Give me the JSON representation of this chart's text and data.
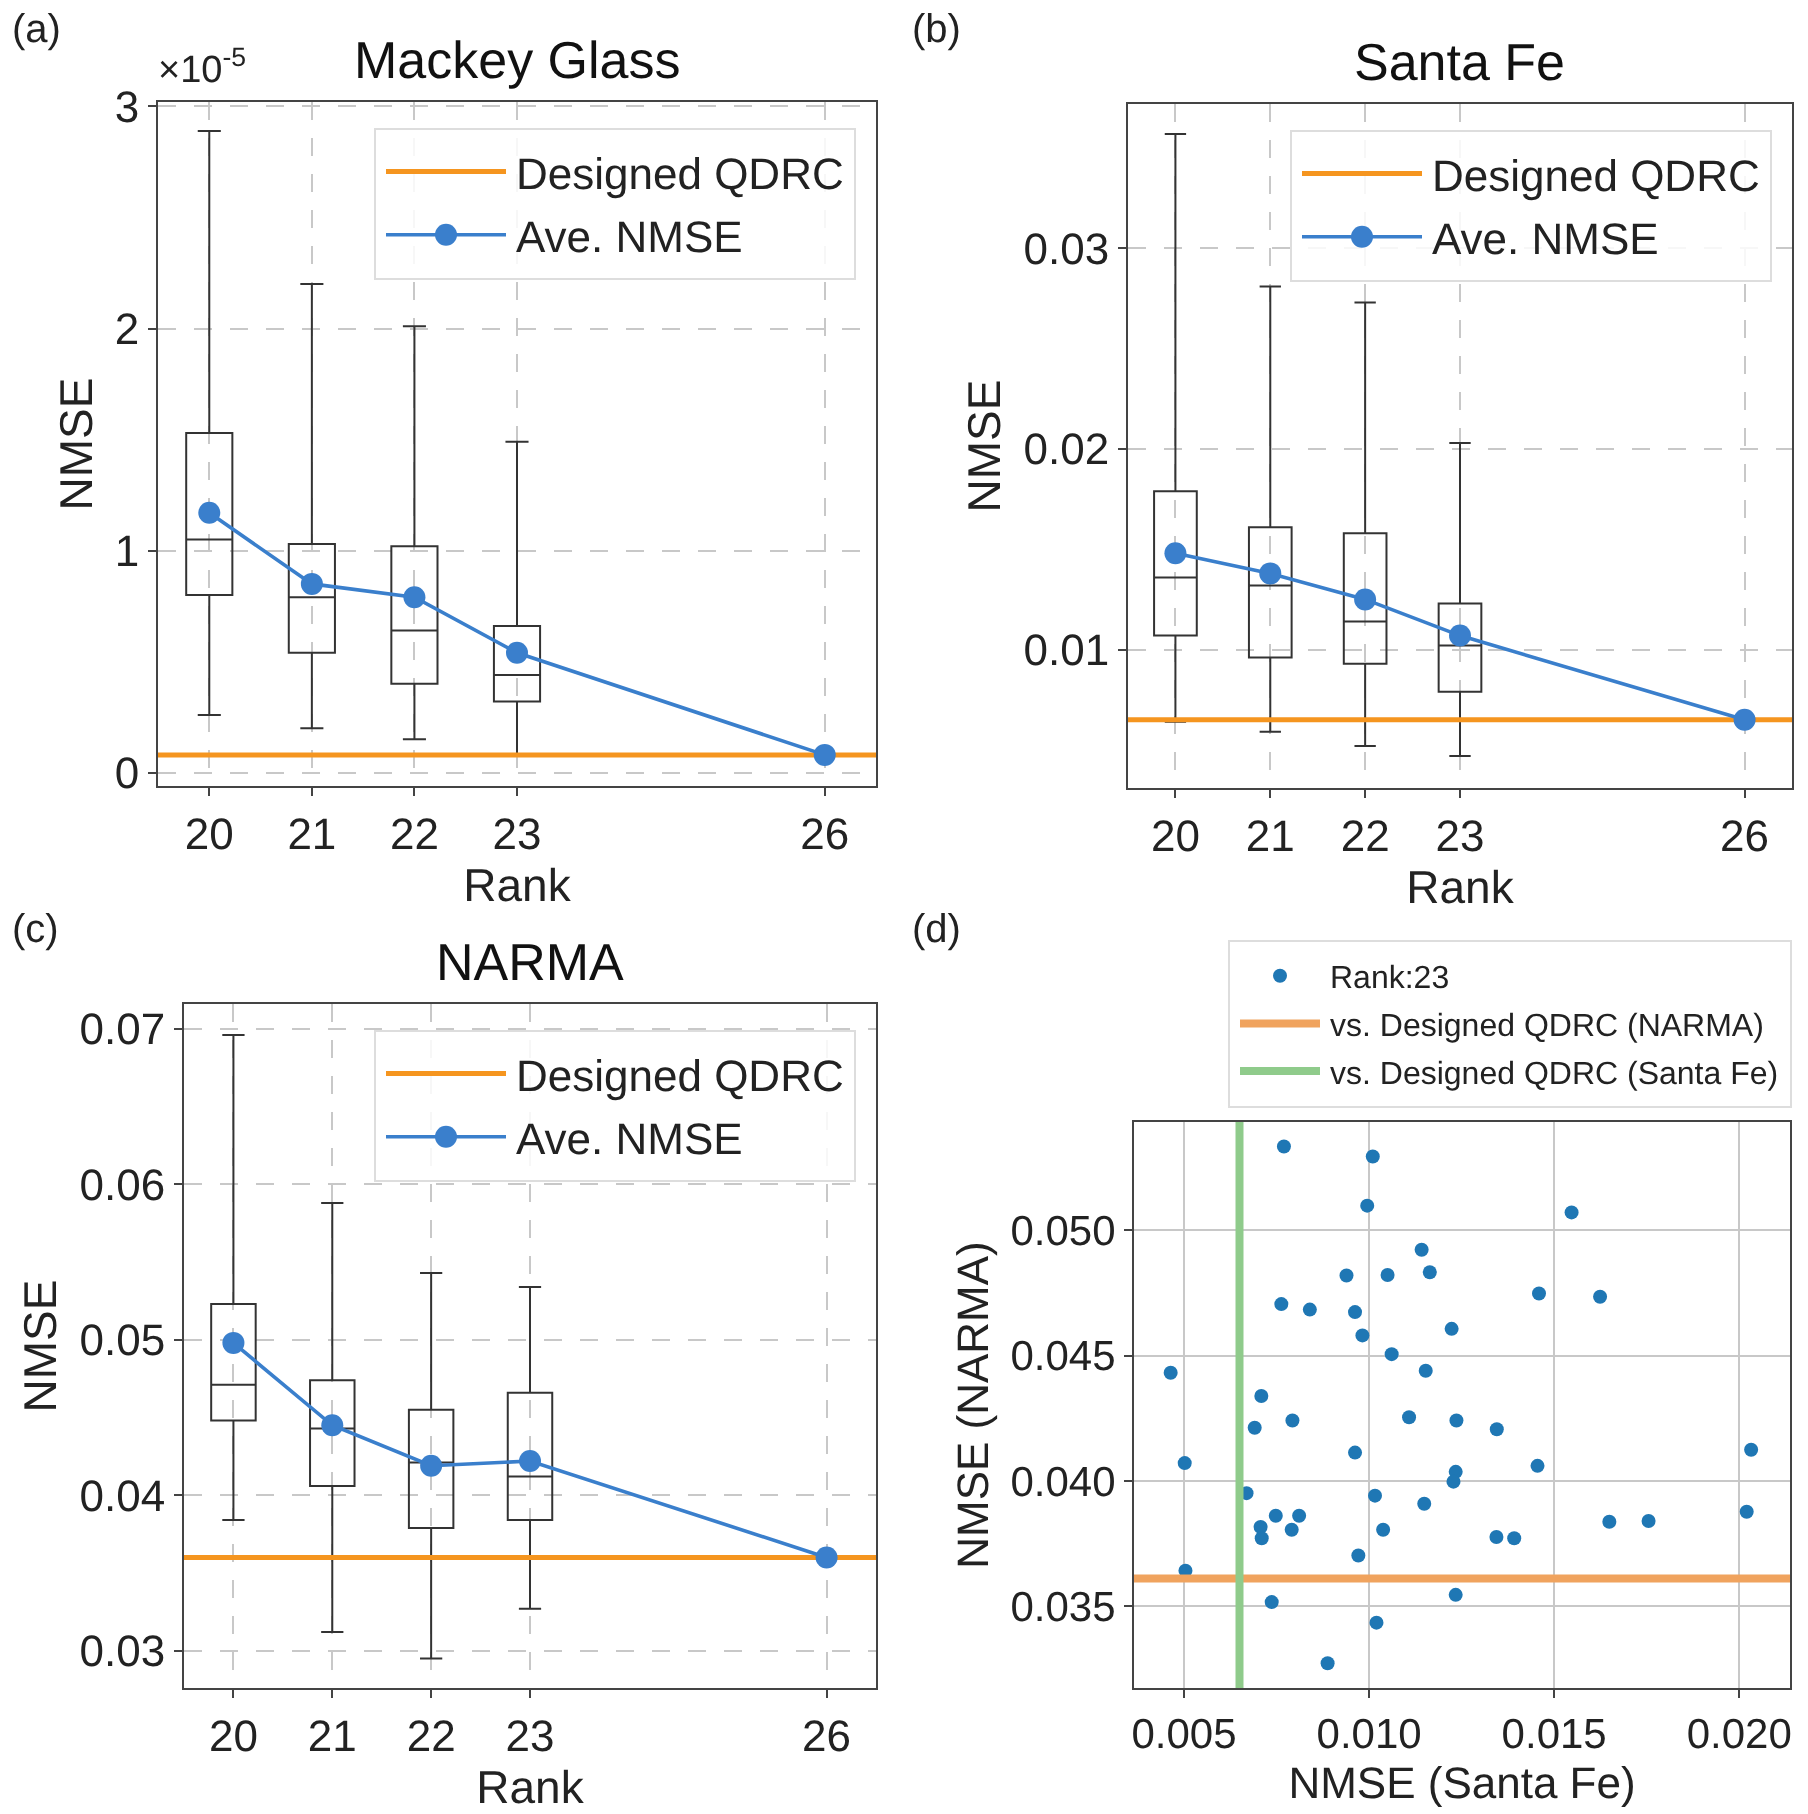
{
  "chart_data": [
    {
      "type": "box",
      "title": "Mackey Glass",
      "xlabel": "Rank",
      "ylabel": "NMSE",
      "annotations": [
        "(a)",
        "×10$^{-5}$"
      ],
      "xlim": [
        19.5,
        26.5
      ],
      "ylim": [
        -0.06,
        3.02
      ],
      "xticks": [
        20,
        21,
        22,
        23,
        26
      ],
      "yticks": [
        0,
        1,
        2,
        3
      ],
      "grid": true,
      "legend": "top right",
      "series": [
        {
          "type": "box",
          "color": "#333333",
          "x": [
            20,
            21,
            22,
            23
          ],
          "boxes": [
            {
              "low": 0.26,
              "q1": 0.8,
              "median": 1.05,
              "q3": 1.53,
              "high": 2.89
            },
            {
              "low": 0.2,
              "q1": 0.54,
              "median": 0.79,
              "q3": 1.03,
              "high": 2.2
            },
            {
              "low": 0.15,
              "q1": 0.4,
              "median": 0.64,
              "q3": 1.02,
              "high": 2.01
            },
            {
              "low": 0.08,
              "q1": 0.32,
              "median": 0.44,
              "q3": 0.66,
              "high": 1.49
            }
          ]
        },
        {
          "type": "line",
          "name": "Ave. NMSE",
          "color": "#3a7fcc",
          "marker": "circle",
          "x": [
            20,
            21,
            22,
            23,
            26
          ],
          "values": [
            1.17,
            0.85,
            0.79,
            0.54,
            0.08
          ]
        }
      ],
      "ref_lines": [
        {
          "axis": "y",
          "value": 0.08,
          "label": "Designed QDRC",
          "color": "#f5951f"
        }
      ]
    },
    {
      "type": "box",
      "title": "Santa Fe",
      "xlabel": "Rank",
      "ylabel": "NMSE",
      "annotations": [
        "(b)"
      ],
      "xlim": [
        19.5,
        26.5
      ],
      "ylim": [
        0.0031,
        0.0372
      ],
      "xticks": [
        20,
        21,
        22,
        23,
        26
      ],
      "yticks": [
        0.01,
        0.02,
        0.03
      ],
      "grid": true,
      "legend": "top right",
      "series": [
        {
          "type": "box",
          "color": "#333333",
          "x": [
            20,
            21,
            22,
            23
          ],
          "boxes": [
            {
              "low": 0.0064,
              "q1": 0.0107,
              "median": 0.0136,
              "q3": 0.0179,
              "high": 0.0357
            },
            {
              "low": 0.0059,
              "q1": 0.0096,
              "median": 0.0132,
              "q3": 0.0161,
              "high": 0.0281
            },
            {
              "low": 0.0052,
              "q1": 0.0093,
              "median": 0.0114,
              "q3": 0.0158,
              "high": 0.0273
            },
            {
              "low": 0.0047,
              "q1": 0.0079,
              "median": 0.0102,
              "q3": 0.0123,
              "high": 0.0203
            }
          ]
        },
        {
          "type": "line",
          "name": "Ave. NMSE",
          "color": "#3a7fcc",
          "marker": "circle",
          "x": [
            20,
            21,
            22,
            23,
            26
          ],
          "values": [
            0.0148,
            0.0138,
            0.0125,
            0.0107,
            0.0065
          ]
        }
      ],
      "ref_lines": [
        {
          "axis": "y",
          "value": 0.0065,
          "label": "Designed QDRC",
          "color": "#f5951f"
        }
      ]
    },
    {
      "type": "box",
      "title": "NARMA",
      "xlabel": "Rank",
      "ylabel": "NMSE",
      "annotations": [
        "(c)"
      ],
      "xlim": [
        19.5,
        26.5
      ],
      "ylim": [
        0.0276,
        0.0716
      ],
      "xticks": [
        20,
        21,
        22,
        23,
        26
      ],
      "yticks": [
        0.03,
        0.04,
        0.05,
        0.06,
        0.07
      ],
      "grid": true,
      "legend": "top right",
      "series": [
        {
          "type": "box",
          "color": "#333333",
          "x": [
            20,
            21,
            22,
            23
          ],
          "boxes": [
            {
              "low": 0.0384,
              "q1": 0.0448,
              "median": 0.0471,
              "q3": 0.0523,
              "high": 0.0696
            },
            {
              "low": 0.0312,
              "q1": 0.0406,
              "median": 0.0443,
              "q3": 0.0474,
              "high": 0.0588
            },
            {
              "low": 0.0295,
              "q1": 0.0379,
              "median": 0.0421,
              "q3": 0.0455,
              "high": 0.0543
            },
            {
              "low": 0.0327,
              "q1": 0.0384,
              "median": 0.0412,
              "q3": 0.0466,
              "high": 0.0534
            }
          ]
        },
        {
          "type": "line",
          "name": "Ave. NMSE",
          "color": "#3a7fcc",
          "marker": "circle",
          "x": [
            20,
            21,
            22,
            23,
            26
          ],
          "values": [
            0.0498,
            0.0445,
            0.0419,
            0.0422,
            0.036
          ]
        }
      ],
      "ref_lines": [
        {
          "axis": "y",
          "value": 0.036,
          "label": "Designed QDRC",
          "color": "#f5951f"
        }
      ]
    },
    {
      "type": "scatter",
      "xlabel": "NMSE (Santa Fe)",
      "ylabel": "NMSE (NARMA)",
      "annotations": [
        "(d)"
      ],
      "xlim": [
        0.00365,
        0.02137
      ],
      "ylim": [
        0.03173,
        0.05433
      ],
      "xticks": [
        0.005,
        {
          "value": 0.01,
          "label": "0.010"
        },
        0.015,
        {
          "value": 0.02,
          "label": "0.020"
        }
      ],
      "yticks": [
        0.035,
        {
          "value": 0.04,
          "label": "0.040"
        },
        0.045,
        {
          "value": 0.05,
          "label": "0.050"
        }
      ],
      "grid": true,
      "legend": "top",
      "series": [
        {
          "type": "scatter",
          "name": "Rank:23",
          "color": "#1f77b4",
          "marker": "circle",
          "x": [
            0.0077,
            0.0101,
            0.00995,
            0.01547,
            0.01142,
            0.00939,
            0.0105,
            0.01164,
            0.01459,
            0.01624,
            0.00763,
            0.0084,
            0.00962,
            0.01223,
            0.00982,
            0.01061,
            0.00464,
            0.01153,
            0.00709,
            0.01108,
            0.00793,
            0.01236,
            0.00691,
            0.01345,
            0.00962,
            0.02032,
            0.00502,
            0.01455,
            0.01234,
            0.01228,
            0.00669,
            0.01016,
            0.01149,
            0.0202,
            0.00748,
            0.00811,
            0.01649,
            0.01755,
            0.00707,
            0.00791,
            0.01038,
            0.0071,
            0.01344,
            0.01392,
            0.00971,
            0.00504,
            0.01234,
            0.00737,
            0.0102,
            0.00888
          ],
          "values": [
            0.05335,
            0.05295,
            0.05099,
            0.05072,
            0.04923,
            0.0482,
            0.04822,
            0.04833,
            0.04748,
            0.04735,
            0.04706,
            0.04684,
            0.04674,
            0.04607,
            0.04581,
            0.04506,
            0.04432,
            0.0444,
            0.04339,
            0.04254,
            0.04241,
            0.04241,
            0.04212,
            0.04206,
            0.04113,
            0.04124,
            0.04071,
            0.0406,
            0.04036,
            0.03997,
            0.03951,
            0.03941,
            0.03909,
            0.03877,
            0.03861,
            0.03861,
            0.03837,
            0.0384,
            0.03816,
            0.03805,
            0.03805,
            0.03771,
            0.03776,
            0.03771,
            0.03702,
            0.03641,
            0.03545,
            0.03516,
            0.03434,
            0.03272
          ]
        }
      ],
      "ref_lines": [
        {
          "axis": "y",
          "value": 0.0361,
          "label": "vs. Designed QDRC (NARMA)",
          "color": "#f0a35e"
        },
        {
          "axis": "x",
          "value": 0.0065,
          "label": "vs. Designed QDRC (Santa Fe)",
          "color": "#8fcb8b"
        }
      ]
    }
  ]
}
